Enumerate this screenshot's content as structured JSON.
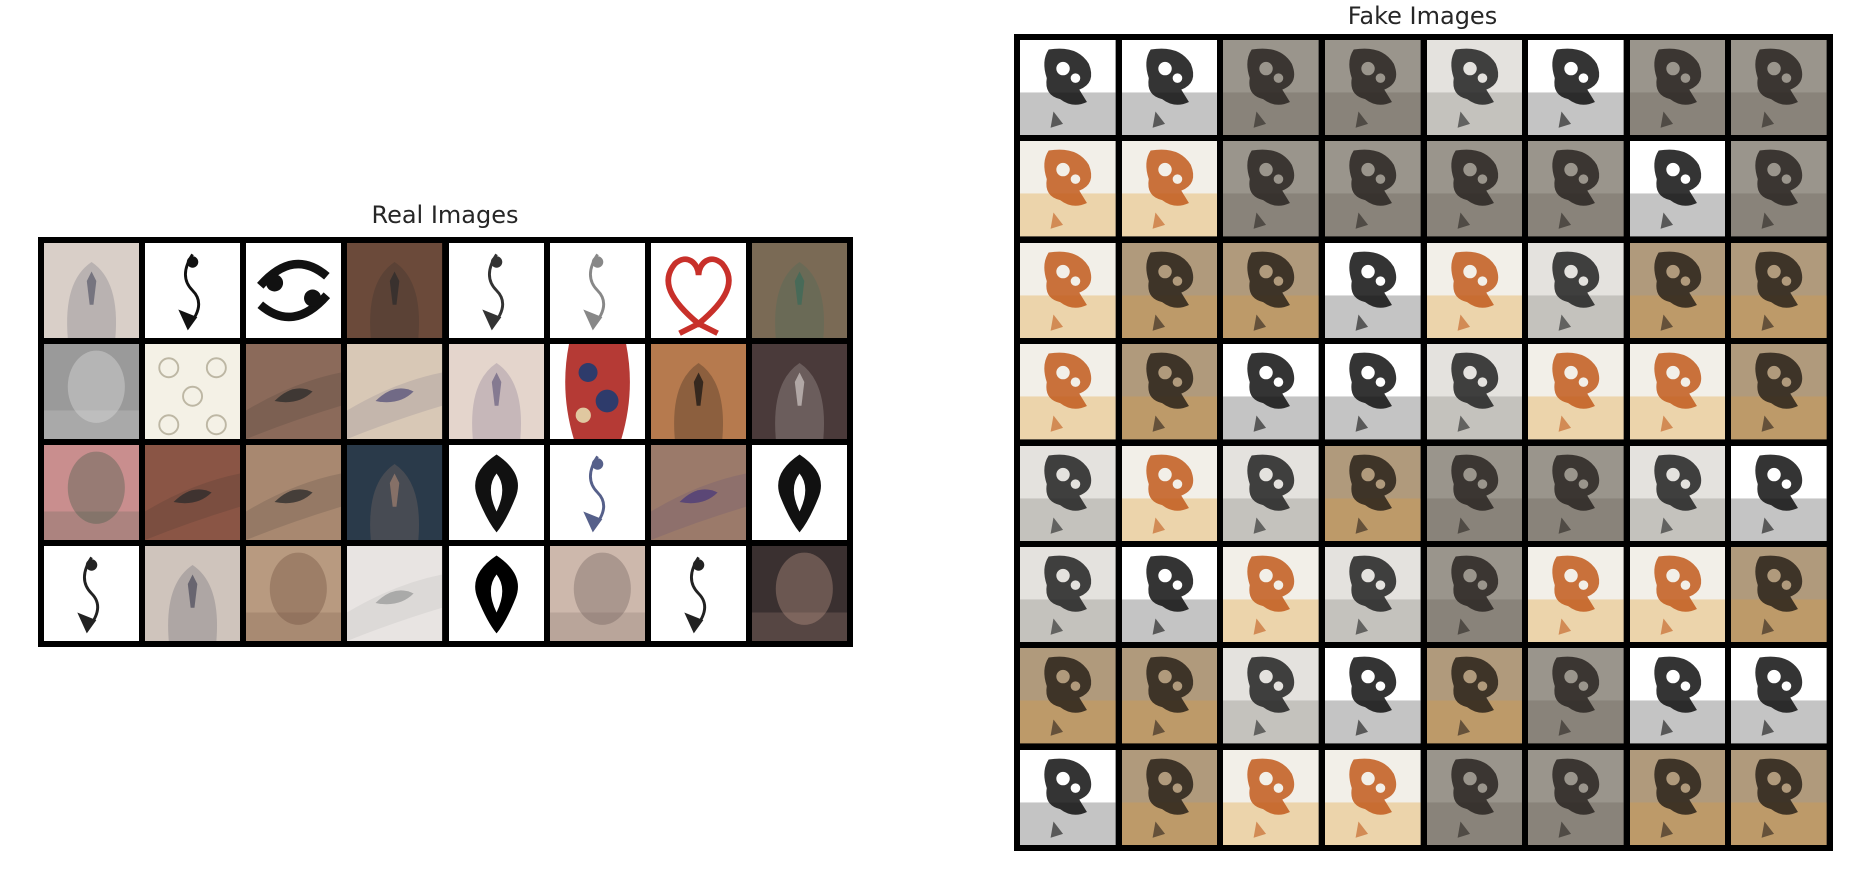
{
  "real": {
    "title": "Real Images",
    "rows": 4,
    "cols": 8,
    "tiles": [
      {
        "kind": "skin-back",
        "bg": "#d9cfc8",
        "fg": "#5a5a6a"
      },
      {
        "kind": "line-art",
        "bg": "#ffffff",
        "fg": "#111111"
      },
      {
        "kind": "zodiac-bold",
        "bg": "#ffffff",
        "fg": "#111111"
      },
      {
        "kind": "skin-back",
        "bg": "#6b4a3a",
        "fg": "#2b2b2b"
      },
      {
        "kind": "line-art",
        "bg": "#ffffff",
        "fg": "#333333"
      },
      {
        "kind": "line-art",
        "bg": "#ffffff",
        "fg": "#888888"
      },
      {
        "kind": "heart",
        "bg": "#ffffff",
        "fg": "#c8302a"
      },
      {
        "kind": "skin-back",
        "bg": "#7a6a55",
        "fg": "#3a6b5a"
      },
      {
        "kind": "photo",
        "bg": "#9a9a9a",
        "fg": "#e8e8e8"
      },
      {
        "kind": "pattern",
        "bg": "#f4f1e6",
        "fg": "#bdb7a4"
      },
      {
        "kind": "arm",
        "bg": "#8b6a5a",
        "fg": "#2b2b2b"
      },
      {
        "kind": "arm",
        "bg": "#d8c8b6",
        "fg": "#55507a"
      },
      {
        "kind": "skin-back",
        "bg": "#e4d5cc",
        "fg": "#6a6080"
      },
      {
        "kind": "color-tattoo",
        "bg": "#b53a35",
        "fg": "#2e3b6b"
      },
      {
        "kind": "skin-back",
        "bg": "#b67a4e",
        "fg": "#111111"
      },
      {
        "kind": "skin-back",
        "bg": "#4a3a3a",
        "fg": "#cfc7c4"
      },
      {
        "kind": "photo",
        "bg": "#c98e8e",
        "fg": "#3a5a45"
      },
      {
        "kind": "arm",
        "bg": "#8a5545",
        "fg": "#2b2b2b"
      },
      {
        "kind": "arm",
        "bg": "#a88870",
        "fg": "#2b2b2b"
      },
      {
        "kind": "skin-back",
        "bg": "#2a3a4a",
        "fg": "#a08070"
      },
      {
        "kind": "tribal",
        "bg": "#ffffff",
        "fg": "#111111"
      },
      {
        "kind": "line-art",
        "bg": "#ffffff",
        "fg": "#56608a"
      },
      {
        "kind": "arm",
        "bg": "#9b7a6a",
        "fg": "#4a3a7a"
      },
      {
        "kind": "tribal",
        "bg": "#ffffff",
        "fg": "#111111"
      },
      {
        "kind": "line-art",
        "bg": "#ffffff",
        "fg": "#222222"
      },
      {
        "kind": "skin-back",
        "bg": "#cfc4bc",
        "fg": "#4a4a5a"
      },
      {
        "kind": "photo",
        "bg": "#b89a80",
        "fg": "#6a4a3a"
      },
      {
        "kind": "arm",
        "bg": "#e8e4e2",
        "fg": "#999999"
      },
      {
        "kind": "tribal",
        "bg": "#ffffff",
        "fg": "#000000"
      },
      {
        "kind": "photo",
        "bg": "#cdb8ac",
        "fg": "#6a5a55"
      },
      {
        "kind": "line-art",
        "bg": "#ffffff",
        "fg": "#222222"
      },
      {
        "kind": "photo",
        "bg": "#3a3030",
        "fg": "#c8a090"
      }
    ]
  },
  "fake": {
    "title": "Fake Images",
    "rows": 8,
    "cols": 8,
    "styles": {
      "A": {
        "bg": "#ffffff",
        "fg": "#111111",
        "accent": "#555555"
      },
      "D": {
        "bg": "#9a958c",
        "fg": "#2a2622",
        "accent": "#6a6258"
      },
      "M": {
        "bg": "#e4e2de",
        "fg": "#222222",
        "accent": "#8a8680"
      },
      "F": {
        "bg": "#f2efe8",
        "fg": "#c25a1c",
        "accent": "#e2a33a"
      },
      "B": {
        "bg": "#b09a7c",
        "fg": "#2a221a",
        "accent": "#d89a48"
      }
    },
    "layout": [
      [
        "A",
        "A",
        "D",
        "D",
        "M",
        "A",
        "D",
        "D"
      ],
      [
        "F",
        "F",
        "D",
        "D",
        "D",
        "D",
        "A",
        "D"
      ],
      [
        "F",
        "B",
        "B",
        "A",
        "F",
        "M",
        "B",
        "B"
      ],
      [
        "F",
        "B",
        "A",
        "A",
        "M",
        "F",
        "F",
        "B"
      ],
      [
        "M",
        "F",
        "M",
        "B",
        "D",
        "D",
        "M",
        "A"
      ],
      [
        "M",
        "A",
        "F",
        "M",
        "D",
        "F",
        "F",
        "B"
      ],
      [
        "B",
        "B",
        "M",
        "A",
        "B",
        "D",
        "A",
        "A"
      ],
      [
        "A",
        "B",
        "F",
        "F",
        "D",
        "D",
        "B",
        "B"
      ]
    ]
  }
}
